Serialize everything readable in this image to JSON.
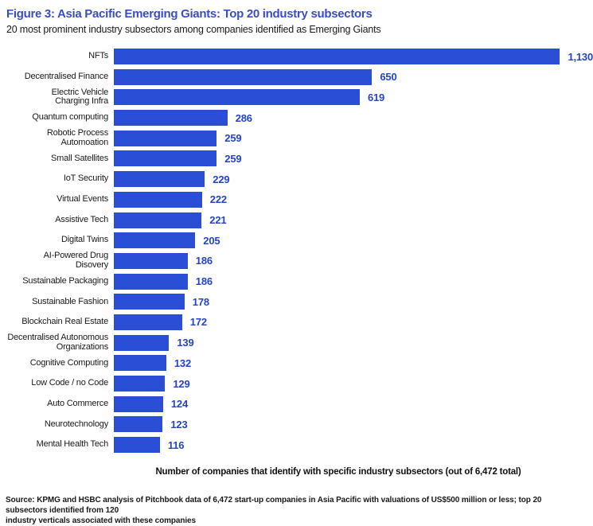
{
  "figure": {
    "title": "Figure 3: Asia Pacific Emerging Giants: Top 20 industry subsectors",
    "subtitle": "20 most prominent industry subsectors among companies identified as Emerging Giants"
  },
  "chart_data": {
    "type": "bar",
    "orientation": "horizontal",
    "title": "Figure 3: Asia Pacific Emerging Giants: Top 20 industry subsectors",
    "subtitle": "20 most prominent industry subsectors among companies identified as Emerging Giants",
    "xlabel": "Number of companies that identify with specific industry subsectors (out of 6,472 total)",
    "xlim": [
      0,
      1130
    ],
    "grid": false,
    "legend": false,
    "bar_color": "#2a4fd6",
    "value_color": "#2544c9",
    "categories": [
      "NFTs",
      "Decentralised Finance",
      "Electric Vehicle\nCharging Infra",
      "Quantum computing",
      "Robotic Process\nAutomoation",
      "Small Satellites",
      "IoT Security",
      "Virtual Events",
      "Assistive Tech",
      "Digital Twins",
      "AI-Powered Drug\nDisovery",
      "Sustainable Packaging",
      "Sustainable Fashion",
      "Blockchain Real Estate",
      "Decentralised Autonomous\nOrganizations",
      "Cognitive Computing",
      "Low Code / no Code",
      "Auto Commerce",
      "Neurotechnology",
      "Mental Health Tech"
    ],
    "values": [
      1130,
      650,
      619,
      286,
      259,
      259,
      229,
      222,
      221,
      205,
      186,
      186,
      178,
      172,
      139,
      132,
      129,
      124,
      123,
      116
    ],
    "value_labels": [
      "1,130",
      "650",
      "619",
      "286",
      "259",
      "259",
      "229",
      "222",
      "221",
      "205",
      "186",
      "186",
      "178",
      "172",
      "139",
      "132",
      "129",
      "124",
      "123",
      "116"
    ]
  },
  "footer": {
    "source": "Source: KPMG and HSBC analysis of Pitchbook data of 6,472 start-up companies in Asia Pacific with valuations of US$500 million or less; top 20 subsectors identified from 120\nindustry verticals associated with these companies"
  }
}
